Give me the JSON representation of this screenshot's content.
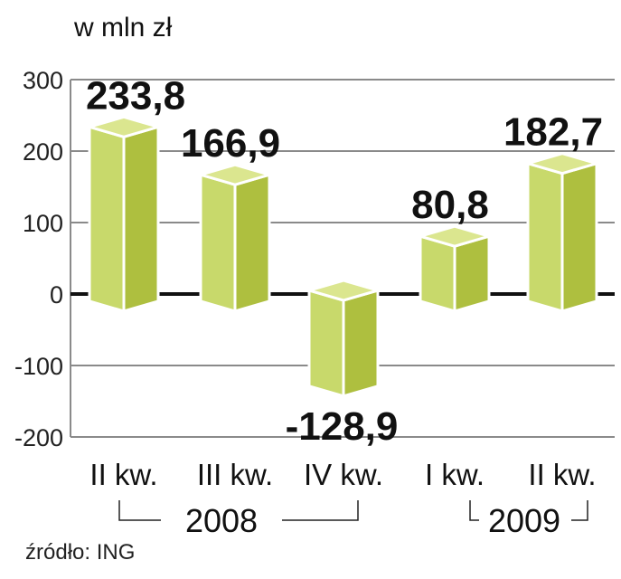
{
  "chart_data": {
    "type": "bar",
    "unit_label": "w mln zł",
    "categories": [
      "II kw.",
      "III kw.",
      "IV kw.",
      "I kw.",
      "II kw."
    ],
    "values": [
      233.8,
      166.9,
      -128.9,
      80.8,
      182.7
    ],
    "value_labels": [
      "233,8",
      "166,9",
      "-128,9",
      "80,8",
      "182,7"
    ],
    "year_groups": [
      {
        "label": "2008",
        "from": 0,
        "to": 2
      },
      {
        "label": "2009",
        "from": 3,
        "to": 4
      }
    ],
    "yticks": [
      300,
      200,
      100,
      0,
      -100,
      -200
    ],
    "ylim": [
      -200,
      300
    ],
    "grid": true,
    "source": "źródło: ING",
    "colors": {
      "front": "#c8d96b",
      "side": "#aebf3f",
      "top": "#dbe68f",
      "grid": "#8a8a8a",
      "zero": "#111111"
    }
  }
}
